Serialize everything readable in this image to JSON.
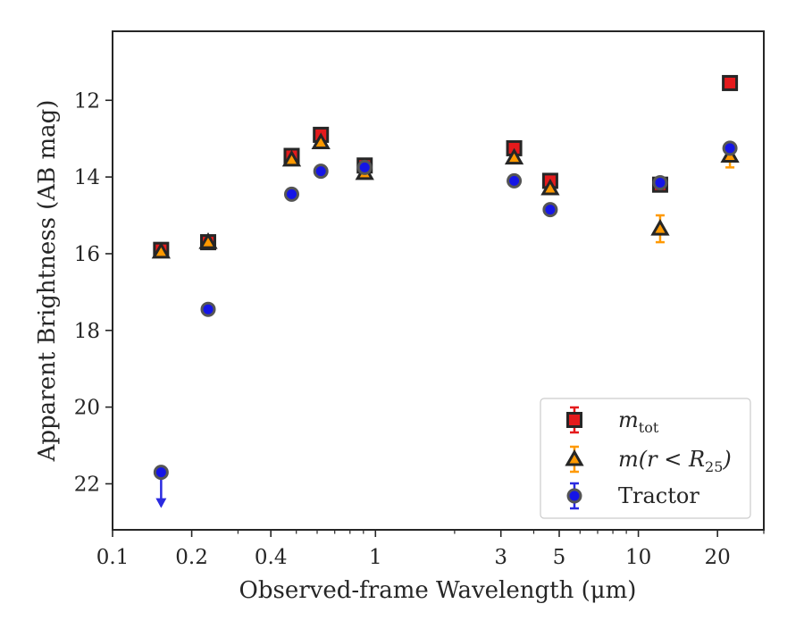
{
  "chart_data": {
    "type": "scatter",
    "title": "",
    "xlabel": "Observed-frame Wavelength (μm)",
    "ylabel": "Apparent Brightness (AB mag)",
    "x_scale": "log",
    "xlim": [
      0.1,
      30
    ],
    "ylim": [
      23.2,
      10.2
    ],
    "y_inverted": true,
    "grid": false,
    "legend_position": "lower right",
    "x_ticks": [
      {
        "value": 0.1,
        "label": "0.1"
      },
      {
        "value": 0.2,
        "label": "0.2"
      },
      {
        "value": 0.4,
        "label": "0.4"
      },
      {
        "value": 1,
        "label": "1"
      },
      {
        "value": 3,
        "label": "3"
      },
      {
        "value": 5,
        "label": "5"
      },
      {
        "value": 10,
        "label": "10"
      },
      {
        "value": 20,
        "label": "20"
      }
    ],
    "y_ticks": [
      {
        "value": 12,
        "label": "12"
      },
      {
        "value": 14,
        "label": "14"
      },
      {
        "value": 16,
        "label": "16"
      },
      {
        "value": 18,
        "label": "18"
      },
      {
        "value": 20,
        "label": "20"
      },
      {
        "value": 22,
        "label": "22"
      }
    ],
    "series": [
      {
        "name": "m_tot",
        "legend_main": "m",
        "legend_sub": "tot",
        "marker": "square",
        "color": "#e41a1c",
        "edge_color": "#262626",
        "error_color": "#e41a1c",
        "points": [
          {
            "x": 0.153,
            "y": 15.9,
            "err": 0.05
          },
          {
            "x": 0.231,
            "y": 15.7,
            "err": 0.05
          },
          {
            "x": 0.48,
            "y": 13.45,
            "err": 0.05
          },
          {
            "x": 0.62,
            "y": 12.9,
            "err": 0.05
          },
          {
            "x": 0.91,
            "y": 13.7,
            "err": 0.05
          },
          {
            "x": 3.37,
            "y": 13.25,
            "err": 0.05
          },
          {
            "x": 4.62,
            "y": 14.1,
            "err": 0.05
          },
          {
            "x": 12.1,
            "y": 14.2,
            "err": 0.05
          },
          {
            "x": 22.3,
            "y": 11.55,
            "err": 0.05
          }
        ]
      },
      {
        "name": "m(r < R25)",
        "legend_main": "m(r < R",
        "legend_sub": "25",
        "legend_tail": ")",
        "marker": "triangle",
        "color": "#ff9900",
        "edge_color": "#262626",
        "error_color": "#ff9900",
        "points": [
          {
            "x": 0.153,
            "y": 15.95,
            "err": 0.05
          },
          {
            "x": 0.231,
            "y": 15.7,
            "err": 0.05
          },
          {
            "x": 0.48,
            "y": 13.55,
            "err": 0.05
          },
          {
            "x": 0.62,
            "y": 13.1,
            "err": 0.05
          },
          {
            "x": 0.91,
            "y": 13.9,
            "err": 0.05
          },
          {
            "x": 3.37,
            "y": 13.5,
            "err": 0.05
          },
          {
            "x": 4.62,
            "y": 14.3,
            "err": 0.05
          },
          {
            "x": 12.1,
            "y": 15.35,
            "err": 0.35
          },
          {
            "x": 22.3,
            "y": 13.45,
            "err": 0.3
          }
        ]
      },
      {
        "name": "Tractor",
        "legend_main": "Tractor",
        "marker": "circle",
        "color": "#1515e6",
        "edge_color": "#555555",
        "error_color": "#2a2ae0",
        "points": [
          {
            "x": 0.153,
            "y": 21.7,
            "upper_limit": true
          },
          {
            "x": 0.231,
            "y": 17.45
          },
          {
            "x": 0.48,
            "y": 14.45
          },
          {
            "x": 0.62,
            "y": 13.85
          },
          {
            "x": 0.91,
            "y": 13.75
          },
          {
            "x": 3.37,
            "y": 14.1
          },
          {
            "x": 4.62,
            "y": 14.85
          },
          {
            "x": 12.1,
            "y": 14.15
          },
          {
            "x": 22.3,
            "y": 13.25
          }
        ]
      }
    ]
  }
}
